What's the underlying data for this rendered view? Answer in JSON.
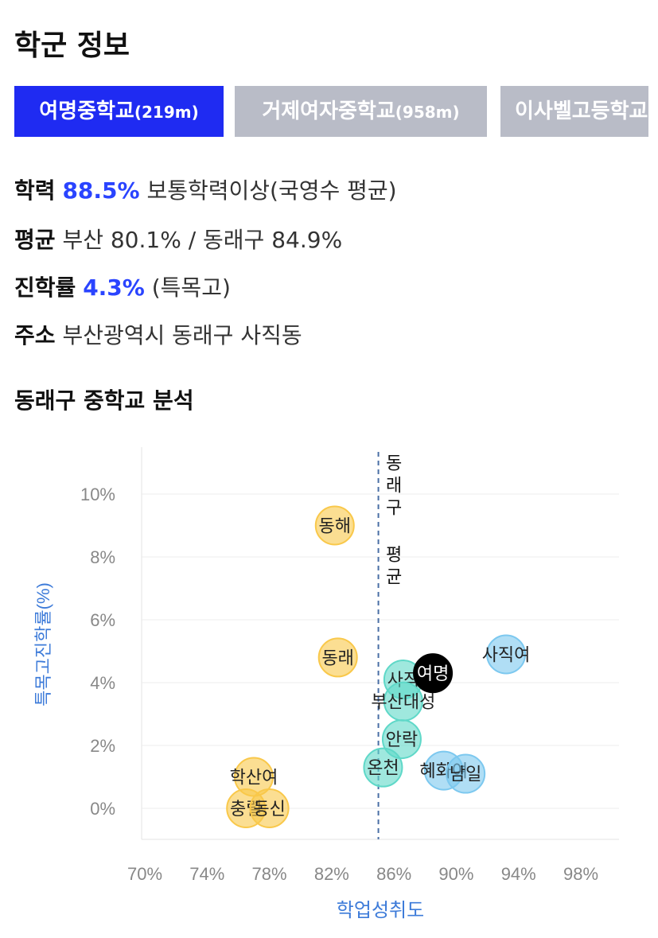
{
  "header": {
    "title": "학군 정보"
  },
  "tabs": [
    {
      "name": "여명중학교",
      "distance": "(219m)",
      "active": true
    },
    {
      "name": "거제여자중학교",
      "distance": "(958m)",
      "active": false
    },
    {
      "name": "이사벨고등학교",
      "distance": "",
      "active": false
    }
  ],
  "info": {
    "achievement": {
      "label": "학력",
      "value": "88.5%",
      "desc": "보통학력이상(국영수 평균)"
    },
    "average": {
      "label": "평균",
      "text": "부산 80.1% / 동래구 84.9%"
    },
    "advance": {
      "label": "진학률",
      "value": "4.3%",
      "desc": "(특목고)"
    },
    "address": {
      "label": "주소",
      "text": "부산광역시 동래구 사직동"
    }
  },
  "analysis": {
    "title": "동래구 중학교 분석"
  },
  "chart_data": {
    "type": "scatter",
    "xlabel": "학업성취도",
    "ylabel": "특목고진학률(%)",
    "xlim": [
      70,
      100
    ],
    "ylim": [
      -1,
      11
    ],
    "xticks": [
      "70%",
      "74%",
      "78%",
      "82%",
      "86%",
      "90%",
      "94%",
      "98%"
    ],
    "yticks": [
      "0%",
      "2%",
      "4%",
      "6%",
      "8%",
      "10%"
    ],
    "grid": true,
    "reference_line": {
      "x": 85.0,
      "label": "동래구 평균"
    },
    "colors": {
      "low": "#f9c84a",
      "mid": "#5fd8c8",
      "high": "#7cc8ef",
      "selected": "#000000",
      "axis_label": "#3d7bd9"
    },
    "points": [
      {
        "label": "동해",
        "x": 82.2,
        "y": 9.0,
        "group": "low"
      },
      {
        "label": "동래",
        "x": 82.4,
        "y": 4.8,
        "group": "low"
      },
      {
        "label": "학산여",
        "x": 77.0,
        "y": 1.0,
        "group": "low"
      },
      {
        "label": "충렬",
        "x": 76.5,
        "y": 0.0,
        "group": "low"
      },
      {
        "label": "동신",
        "x": 78.0,
        "y": 0.0,
        "group": "low"
      },
      {
        "label": "사직",
        "x": 86.6,
        "y": 4.1,
        "group": "mid"
      },
      {
        "label": "부산대성",
        "x": 86.6,
        "y": 3.4,
        "group": "mid"
      },
      {
        "label": "안락",
        "x": 86.5,
        "y": 2.2,
        "group": "mid"
      },
      {
        "label": "온천",
        "x": 85.3,
        "y": 1.3,
        "group": "mid"
      },
      {
        "label": "사직여",
        "x": 93.2,
        "y": 4.9,
        "group": "high"
      },
      {
        "label": "혜화여",
        "x": 89.2,
        "y": 1.2,
        "group": "high"
      },
      {
        "label": "남일",
        "x": 90.6,
        "y": 1.1,
        "group": "high"
      },
      {
        "label": "여명",
        "x": 88.5,
        "y": 4.3,
        "group": "selected"
      }
    ]
  }
}
